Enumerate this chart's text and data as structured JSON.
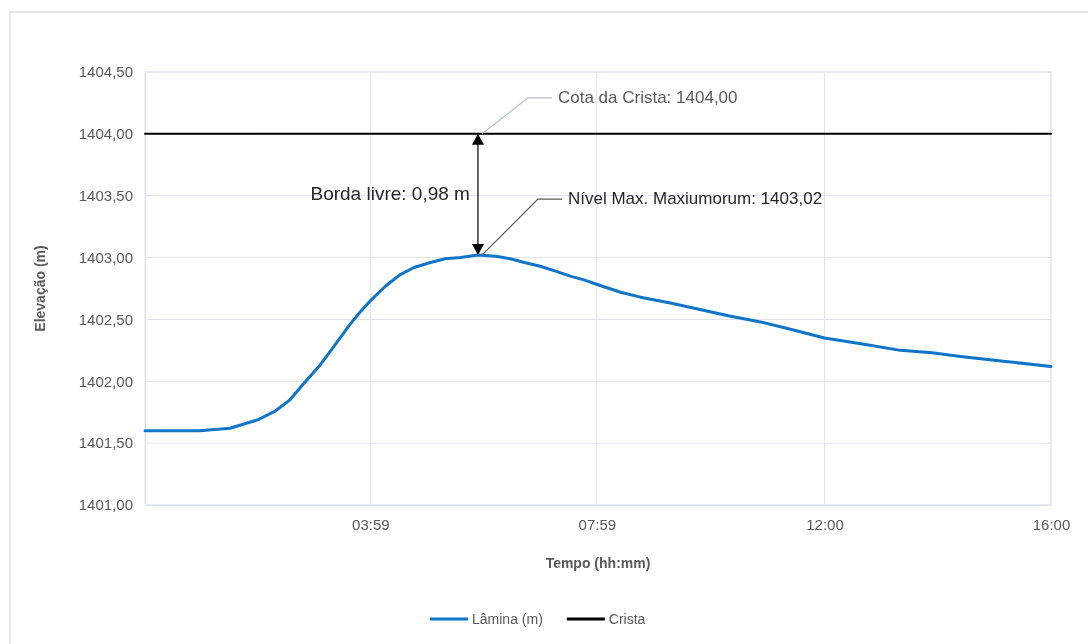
{
  "chart_data": {
    "type": "line",
    "xlabel": "Tempo (hh:mm)",
    "ylabel": "Elevação (m)",
    "xlim": [
      0,
      16
    ],
    "xticks": [
      {
        "value": 3.98,
        "label": "03:59"
      },
      {
        "value": 7.98,
        "label": "07:59"
      },
      {
        "value": 12,
        "label": "12:00"
      },
      {
        "value": 16,
        "label": "16:00"
      }
    ],
    "ylim": [
      1401,
      1404.5
    ],
    "yticks": [
      {
        "value": 1401,
        "label": "1401,00"
      },
      {
        "value": 1401.5,
        "label": "1401,50"
      },
      {
        "value": 1402,
        "label": "1402,00"
      },
      {
        "value": 1402.5,
        "label": "1402,50"
      },
      {
        "value": 1403,
        "label": "1403,00"
      },
      {
        "value": 1403.5,
        "label": "1403,50"
      },
      {
        "value": 1404,
        "label": "1404,00"
      },
      {
        "value": 1404.5,
        "label": "1404,50"
      }
    ],
    "grid": true,
    "legend": "bottom",
    "marker": "none",
    "line_style": "solid",
    "series": [
      {
        "name": "Lâmina (m)",
        "color": "#0f75c8",
        "x": [
          0,
          0.5,
          0.97,
          1.5,
          2,
          2.3,
          2.56,
          2.8,
          3.09,
          3.35,
          3.62,
          3.8,
          4,
          4.25,
          4.5,
          4.75,
          5.04,
          5.3,
          5.57,
          5.88,
          6.2,
          6.45,
          6.7,
          6.98,
          7.25,
          7.51,
          7.75,
          8,
          8.4,
          8.75,
          9.3,
          9.8,
          10.3,
          10.87,
          11.4,
          12,
          12.7,
          13.34,
          13.9,
          14.4,
          15.2,
          16
        ],
        "values": [
          1401.6,
          1401.6,
          1401.6,
          1401.62,
          1401.69,
          1401.76,
          1401.85,
          1401.98,
          1402.13,
          1402.29,
          1402.46,
          1402.56,
          1402.66,
          1402.77,
          1402.86,
          1402.92,
          1402.96,
          1402.99,
          1403.0,
          1403.02,
          1403.01,
          1402.99,
          1402.96,
          1402.93,
          1402.89,
          1402.85,
          1402.82,
          1402.78,
          1402.72,
          1402.68,
          1402.63,
          1402.58,
          1402.53,
          1402.48,
          1402.42,
          1402.35,
          1402.3,
          1402.25,
          1402.23,
          1402.2,
          1402.16,
          1402.12
        ]
      },
      {
        "name": "Crista",
        "color": "#000000",
        "x": [
          0,
          16
        ],
        "values": [
          1404,
          1404
        ]
      }
    ],
    "annotations": [
      {
        "text": "Cota da Crista: 1404,00",
        "x": 5.88,
        "y": 1404
      },
      {
        "text": "Nível Max. Maxiumorum: 1403,02",
        "x": 5.88,
        "y": 1403.02
      },
      "Borda livre: 0,98 m"
    ]
  }
}
